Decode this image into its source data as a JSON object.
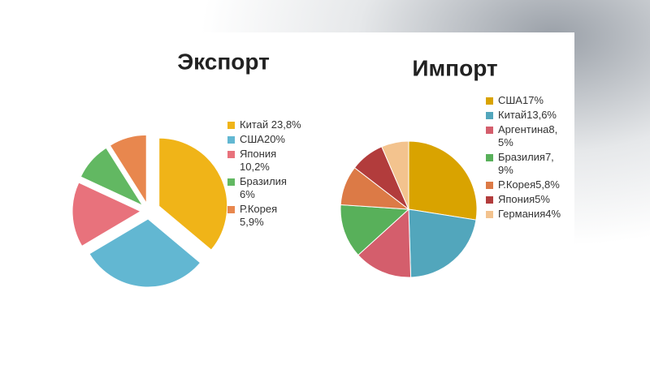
{
  "chart_data": [
    {
      "type": "pie",
      "title": "Экспорт",
      "categories": [
        "Китай 23,8%",
        "США20%",
        "Япония 10,2%",
        "Бразилия 6%",
        "Р.Корея 5,9%"
      ],
      "values": [
        23.8,
        20,
        10.2,
        6,
        5.9
      ],
      "colors": [
        "#f0b418",
        "#62b7d2",
        "#e8727c",
        "#62b862",
        "#e8874e"
      ],
      "exploded": true
    },
    {
      "type": "pie",
      "title": "Импорт",
      "categories": [
        "США17%",
        "Китай13,6%",
        "Аргентина8,5%",
        "Бразилия7,9%",
        "Р.Корея5,8%",
        "Япония5%",
        "Германия4%"
      ],
      "values": [
        17,
        13.6,
        8.5,
        7.9,
        5.8,
        5,
        4
      ],
      "colors": [
        "#d9a300",
        "#52a6bc",
        "#d45e6c",
        "#58b05a",
        "#dc7a46",
        "#b23c3c",
        "#f3c38e"
      ],
      "exploded": false
    }
  ]
}
